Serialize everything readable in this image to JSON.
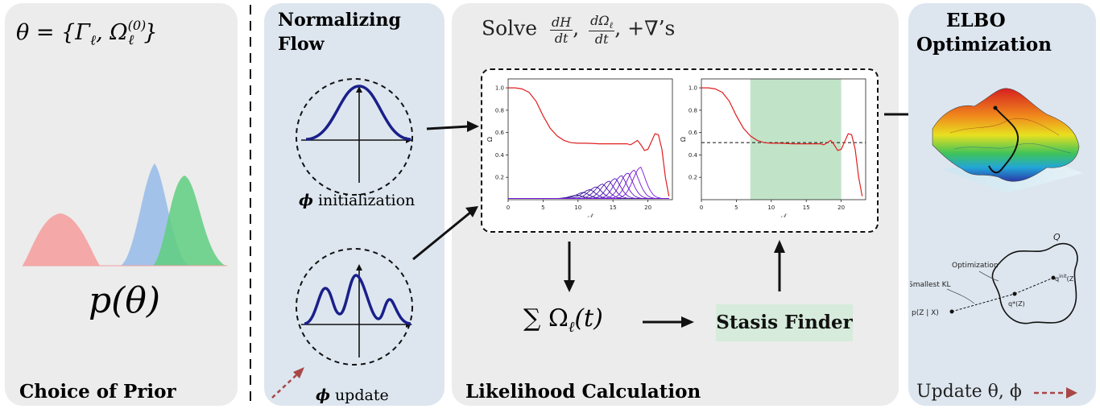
{
  "prior": {
    "theta_eq": "θ = {Γ",
    "sub_ell": "ℓ",
    "omega": ", Ω",
    "sup0": "(0)",
    "brace": "}",
    "p_theta": "p(θ)",
    "caption": "Choice of Prior",
    "colors": {
      "pink": "#f4a4a4",
      "blue": "#9fc0ea",
      "green": "#5fcf80"
    }
  },
  "flow": {
    "title_line1": "Normalizing",
    "title_line2": "Flow",
    "phi": "ϕ",
    "init_label": "initialization",
    "update_label": "update",
    "curve_color": "#1a1f8a"
  },
  "likelihood": {
    "solve_prefix": "Solve",
    "frac1_num": "dH",
    "frac1_den": "dt",
    "frac2_num": "dΩ",
    "frac2_sub": "ℓ",
    "frac2_den": "dt",
    "solve_suffix": ", +∇’s",
    "sum_text": "∑ Ω",
    "sum_sub": "ℓ",
    "sum_arg": "(t)",
    "stasis_label": "Stasis Finder",
    "caption": "Likelihood Calculation"
  },
  "elbo": {
    "title_line1": "ELBO",
    "title_line2": "Optimization",
    "q_label": "Q",
    "optimization_label": "Optimization",
    "smallest_kl_label": "Smallest KL",
    "p_label": "p(Z | X)",
    "qstar_label": "q*(Z)",
    "qinit_label": "q",
    "qinit_sup": "init",
    "qinit_suffix": "(Z)",
    "update_text": "Update θ, ϕ",
    "arrow_color": "#a84747"
  },
  "chart_data": [
    {
      "type": "line",
      "title": "",
      "xlabel": "𝒩",
      "ylabel": "Ω",
      "xlim": [
        0,
        23.5
      ],
      "ylim": [
        0,
        1.08
      ],
      "xticks": [
        0,
        5,
        10,
        15,
        20
      ],
      "yticks": [
        0.2,
        0.4,
        0.6,
        0.8,
        1.0
      ],
      "series": [
        {
          "color": "#e01f1f",
          "x": [
            0,
            1,
            2,
            3,
            4,
            5,
            6,
            7,
            8,
            9,
            10,
            11,
            12,
            13,
            14,
            15,
            16,
            17,
            17.5,
            18,
            18.5,
            19,
            19.5,
            20,
            20.5,
            21,
            21.5,
            22,
            22.5,
            23
          ],
          "y": [
            1.0,
            1.0,
            0.99,
            0.96,
            0.88,
            0.75,
            0.64,
            0.57,
            0.53,
            0.51,
            0.505,
            0.505,
            0.503,
            0.5,
            0.5,
            0.5,
            0.5,
            0.5,
            0.49,
            0.51,
            0.53,
            0.49,
            0.44,
            0.45,
            0.52,
            0.59,
            0.58,
            0.45,
            0.2,
            0.03
          ]
        }
      ],
      "overlays": {
        "shaded_region": null,
        "reference_line": null
      }
    },
    {
      "type": "line",
      "title": "",
      "xlabel": "𝒩",
      "ylabel": "Ω",
      "xlim": [
        0,
        23.5
      ],
      "ylim": [
        0,
        1.08
      ],
      "xticks": [
        0,
        5,
        10,
        15,
        20
      ],
      "yticks": [
        0.2,
        0.4,
        0.6,
        0.8,
        1.0
      ],
      "series": [
        {
          "color": "#e01f1f",
          "x": [
            0,
            1,
            2,
            3,
            4,
            5,
            6,
            7,
            8,
            9,
            10,
            11,
            12,
            13,
            14,
            15,
            16,
            17,
            17.5,
            18,
            18.5,
            19,
            19.5,
            20,
            20.5,
            21,
            21.5,
            22,
            22.5,
            23
          ],
          "y": [
            1.0,
            1.0,
            0.99,
            0.96,
            0.88,
            0.75,
            0.64,
            0.57,
            0.53,
            0.51,
            0.505,
            0.505,
            0.503,
            0.5,
            0.5,
            0.5,
            0.5,
            0.5,
            0.49,
            0.51,
            0.53,
            0.49,
            0.44,
            0.45,
            0.52,
            0.59,
            0.58,
            0.45,
            0.2,
            0.03
          ]
        }
      ],
      "overlays": {
        "shaded_region": [
          7,
          20
        ],
        "shaded_color": "#c1e4c8",
        "reference_line": 0.51
      }
    }
  ]
}
